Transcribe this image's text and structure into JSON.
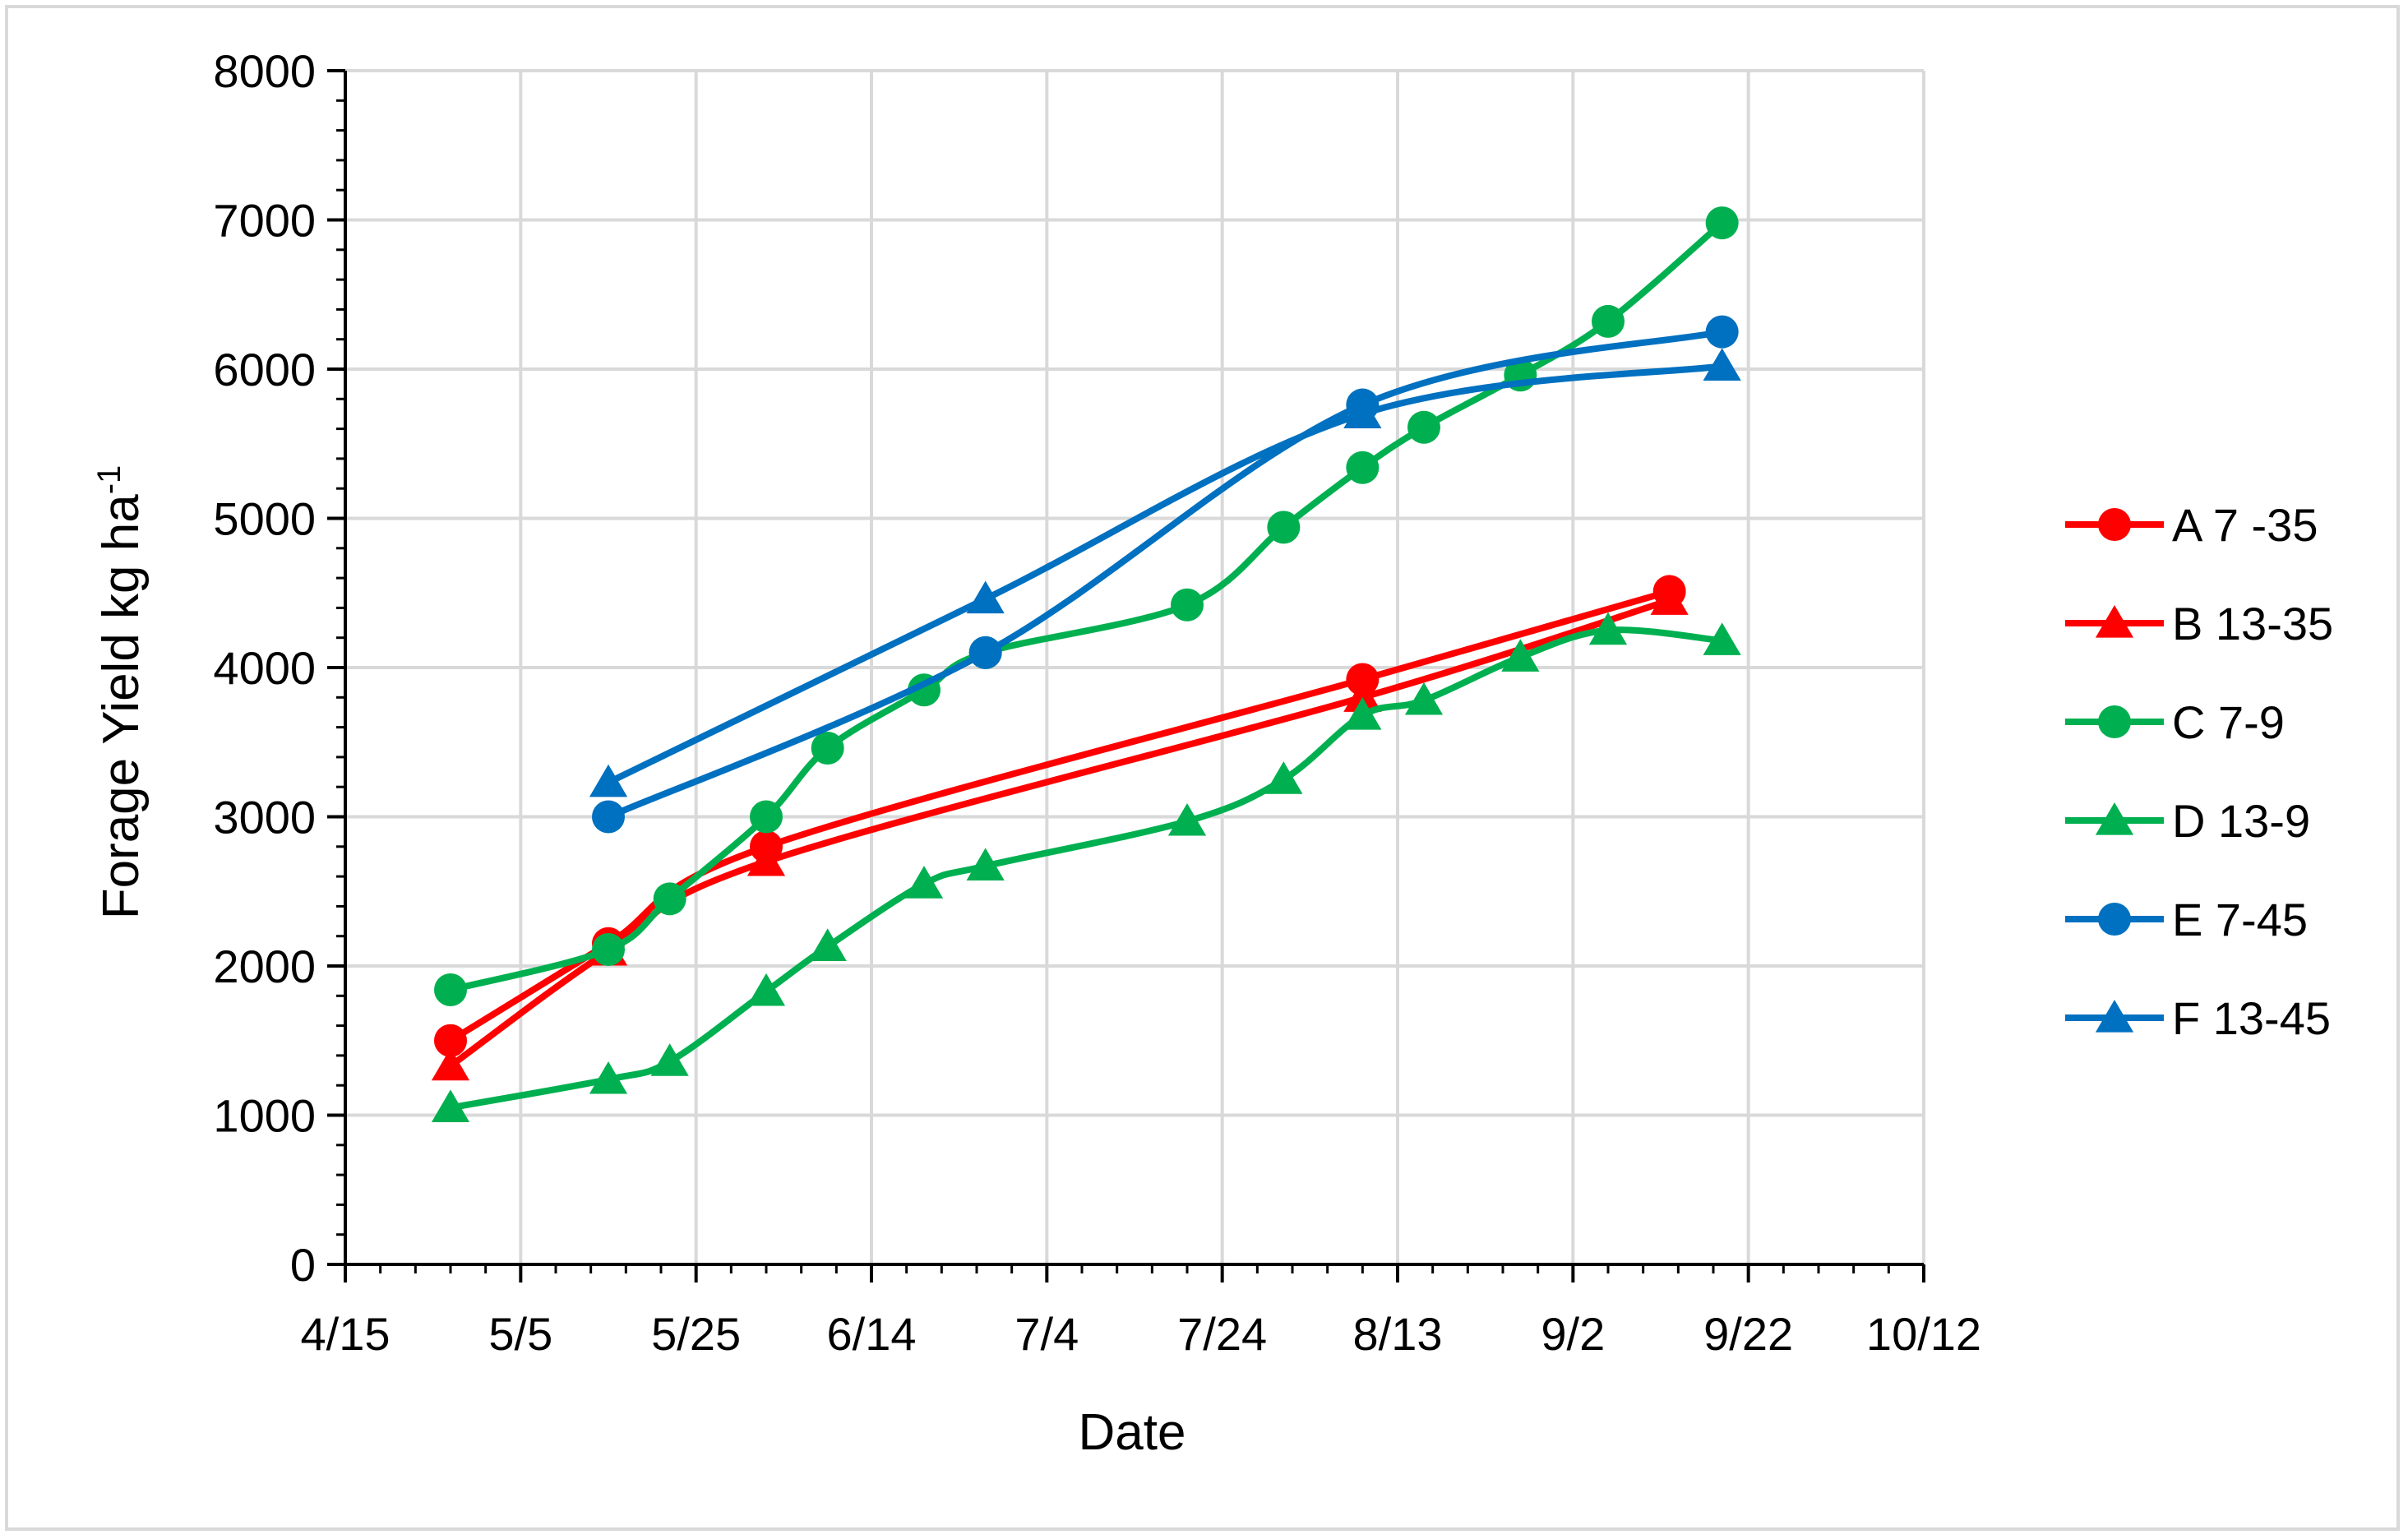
{
  "chart_data": {
    "type": "line",
    "title": "",
    "xlabel": "Date",
    "ylabel": {
      "main": "Forage Yield kg ha",
      "superscript": "-1"
    },
    "xlim": [
      "4/15",
      "10/12"
    ],
    "ylim": [
      0,
      8000
    ],
    "x_ticks": [
      "4/15",
      "5/5",
      "5/25",
      "6/14",
      "7/4",
      "7/24",
      "8/13",
      "9/2",
      "9/22",
      "10/12"
    ],
    "y_ticks": [
      0,
      1000,
      2000,
      3000,
      4000,
      5000,
      6000,
      7000,
      8000
    ],
    "grid": true,
    "legend_position": "right",
    "series": [
      {
        "name": "A 7 -35",
        "color": "#ff0000",
        "marker": "circle",
        "points": [
          [
            "4/27",
            1500
          ],
          [
            "5/15",
            2150
          ],
          [
            "6/2",
            2800
          ],
          [
            "8/9",
            3920
          ],
          [
            "9/13",
            4510
          ]
        ]
      },
      {
        "name": "B 13-35",
        "color": "#ff0000",
        "marker": "triangle",
        "points": [
          [
            "4/27",
            1330
          ],
          [
            "5/15",
            2100
          ],
          [
            "6/2",
            2700
          ],
          [
            "8/9",
            3800
          ],
          [
            "9/13",
            4450
          ]
        ]
      },
      {
        "name": "C 7-9",
        "color": "#00b050",
        "marker": "circle",
        "points": [
          [
            "4/27",
            1840
          ],
          [
            "5/15",
            2110
          ],
          [
            "5/22",
            2450
          ],
          [
            "6/2",
            3000
          ],
          [
            "6/9",
            3460
          ],
          [
            "6/20",
            3850
          ],
          [
            "6/27",
            4100
          ],
          [
            "7/20",
            4420
          ],
          [
            "7/31",
            4940
          ],
          [
            "8/9",
            5340
          ],
          [
            "8/16",
            5610
          ],
          [
            "8/27",
            5960
          ],
          [
            "9/6",
            6320
          ],
          [
            "9/19",
            6980
          ]
        ]
      },
      {
        "name": "D 13-9",
        "color": "#00b050",
        "marker": "triangle",
        "points": [
          [
            "4/27",
            1050
          ],
          [
            "5/15",
            1240
          ],
          [
            "5/22",
            1360
          ],
          [
            "6/2",
            1830
          ],
          [
            "6/9",
            2130
          ],
          [
            "6/20",
            2550
          ],
          [
            "6/27",
            2670
          ],
          [
            "7/20",
            2970
          ],
          [
            "7/31",
            3250
          ],
          [
            "8/9",
            3680
          ],
          [
            "8/16",
            3780
          ],
          [
            "8/27",
            4070
          ],
          [
            "9/6",
            4250
          ],
          [
            "9/19",
            4180
          ]
        ]
      },
      {
        "name": "E 7-45",
        "color": "#0070c0",
        "marker": "circle",
        "points": [
          [
            "5/15",
            3000
          ],
          [
            "6/27",
            4100
          ],
          [
            "8/9",
            5760
          ],
          [
            "9/19",
            6250
          ]
        ]
      },
      {
        "name": "F 13-45",
        "color": "#0070c0",
        "marker": "triangle",
        "points": [
          [
            "5/15",
            3230
          ],
          [
            "6/27",
            4460
          ],
          [
            "8/9",
            5700
          ],
          [
            "9/19",
            6020
          ]
        ]
      }
    ]
  }
}
